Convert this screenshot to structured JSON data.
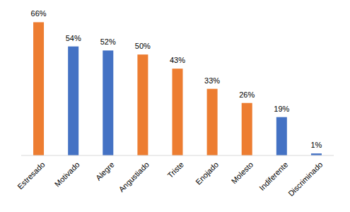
{
  "chart_data": {
    "type": "bar",
    "categories": [
      "Estresado",
      "Motivado",
      "Alegre",
      "Angustiado",
      "Triste",
      "Enojado",
      "Molesto",
      "Indiferente",
      "Discriminado"
    ],
    "values": [
      66,
      54,
      52,
      50,
      43,
      33,
      26,
      19,
      1
    ],
    "value_labels": [
      "66%",
      "54%",
      "52%",
      "50%",
      "43%",
      "33%",
      "26%",
      "19%",
      "1%"
    ],
    "colors": [
      "#ed7d31",
      "#4472c4",
      "#4472c4",
      "#ed7d31",
      "#ed7d31",
      "#ed7d31",
      "#ed7d31",
      "#4472c4",
      "#4472c4"
    ],
    "ylim": [
      0,
      70
    ],
    "grid": false,
    "data_labels": true,
    "tick_labels": "x"
  }
}
